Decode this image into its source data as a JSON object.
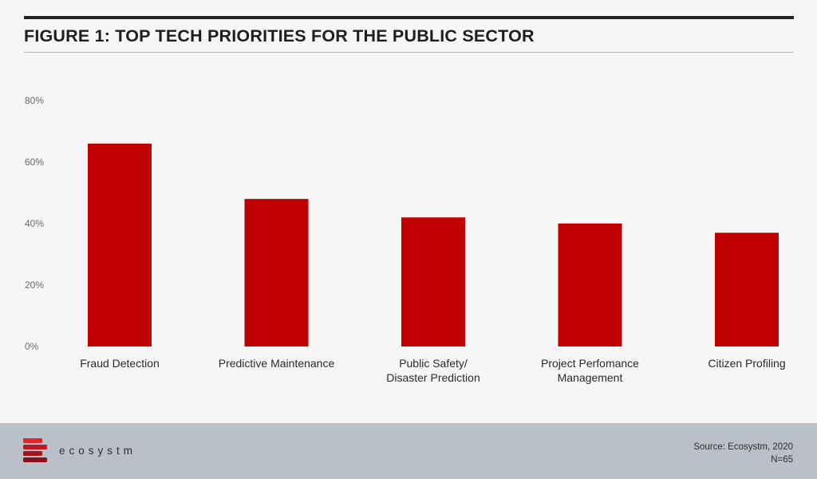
{
  "header": {
    "title": "FIGURE 1: TOP TECH PRIORITIES FOR THE PUBLIC SECTOR"
  },
  "chart_data": {
    "type": "bar",
    "title": "FIGURE 1: TOP TECH PRIORITIES FOR THE PUBLIC SECTOR",
    "xlabel": "",
    "ylabel": "",
    "categories": [
      [
        "Fraud Detection"
      ],
      [
        "Predictive Maintenance"
      ],
      [
        "Public Safety/",
        "Disaster Prediction"
      ],
      [
        "Project Perfomance",
        "Management"
      ],
      [
        "Citizen Profiling"
      ]
    ],
    "values": [
      66,
      48,
      42,
      40,
      37
    ],
    "ylim": [
      0,
      80
    ],
    "yticks": [
      0,
      20,
      40,
      60,
      80
    ],
    "ytick_labels": [
      "0%",
      "20%",
      "40%",
      "60%",
      "80%"
    ],
    "bar_color": "#c00000",
    "grid": false,
    "legend": "none"
  },
  "footer": {
    "brand": "ecosystm",
    "source": "Source: Ecosystm, 2020",
    "sample": "N=65",
    "logo_colors": [
      "#e4232b",
      "#c3161d",
      "#a8141a",
      "#8b1116"
    ]
  }
}
